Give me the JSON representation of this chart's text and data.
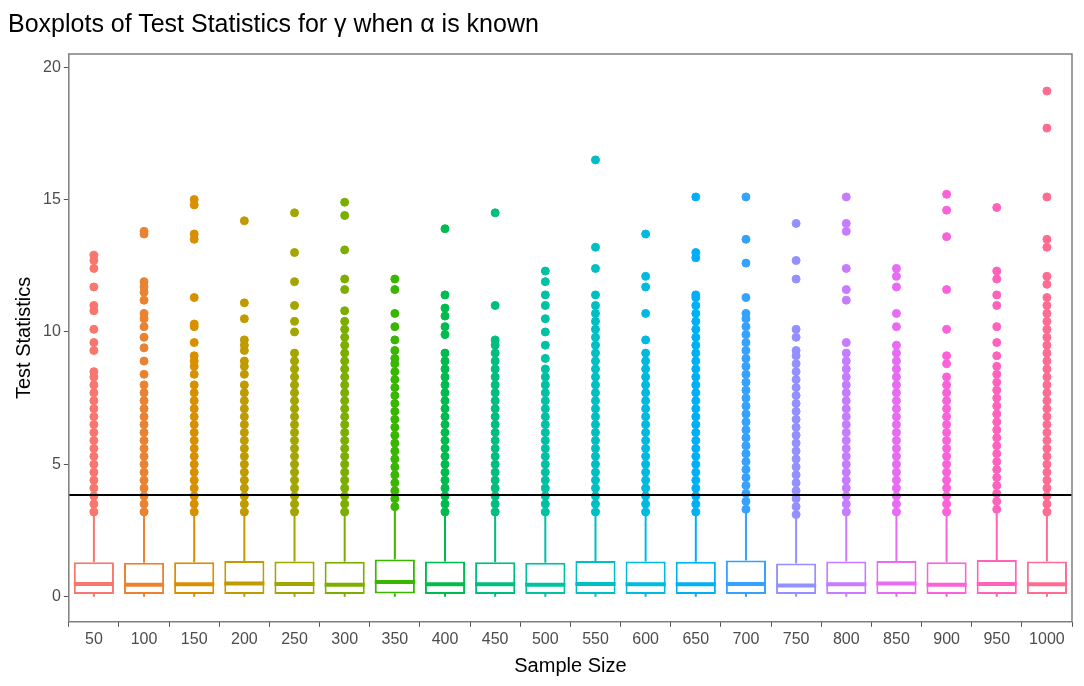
{
  "chart_data": {
    "type": "box",
    "title": "Boxplots of Test Statistics for γ when α is known",
    "xlabel": "Sample Size",
    "ylabel": "Test Statistics",
    "categories": [
      "50",
      "100",
      "150",
      "200",
      "250",
      "300",
      "350",
      "400",
      "450",
      "500",
      "550",
      "600",
      "650",
      "700",
      "750",
      "800",
      "850",
      "900",
      "950",
      "1000"
    ],
    "colors": [
      "#f8766d",
      "#ea8331",
      "#d89000",
      "#c09b00",
      "#a3a500",
      "#7cae00",
      "#39b600",
      "#00bb4e",
      "#00bf7d",
      "#00c1a3",
      "#00bfc4",
      "#00bae0",
      "#00b0f6",
      "#35a2ff",
      "#9590ff",
      "#c77cff",
      "#e76bf3",
      "#fa62db",
      "#ff62bc",
      "#ff6c91"
    ],
    "ylim": [
      -0.95,
      20.5
    ],
    "yticks": [
      0,
      5,
      10,
      15,
      20
    ],
    "grid": false,
    "legend": false,
    "ref_lines": [
      {
        "axis": "y",
        "value": 3.84,
        "color": "#000000"
      }
    ],
    "boxes": [
      {
        "low": 0,
        "q1": 0.1,
        "median": 0.48,
        "q3": 1.3,
        "high": 3.1,
        "outliers": [
          3.2,
          3.5,
          3.8,
          4.1,
          4.4,
          4.7,
          5.0,
          5.3,
          5.6,
          5.9,
          6.2,
          6.5,
          6.8,
          7.1,
          7.4,
          7.7,
          8.0,
          8.3,
          8.5,
          9.3,
          9.6,
          10.1,
          10.8,
          11.0,
          11.7,
          12.4,
          12.7,
          12.9
        ]
      },
      {
        "low": 0,
        "q1": 0.1,
        "median": 0.45,
        "q3": 1.28,
        "high": 3.05,
        "outliers": [
          3.2,
          3.5,
          3.8,
          4.1,
          4.4,
          4.7,
          5.0,
          5.3,
          5.6,
          5.9,
          6.2,
          6.5,
          6.8,
          7.1,
          7.4,
          7.7,
          8.0,
          8.4,
          8.9,
          9.4,
          9.8,
          10.2,
          10.5,
          10.7,
          11.2,
          11.5,
          11.7,
          11.9,
          13.7,
          13.8
        ]
      },
      {
        "low": 0,
        "q1": 0.1,
        "median": 0.47,
        "q3": 1.3,
        "high": 3.1,
        "outliers": [
          3.2,
          3.5,
          3.8,
          4.1,
          4.4,
          4.7,
          5.0,
          5.3,
          5.6,
          5.9,
          6.2,
          6.5,
          6.8,
          7.1,
          7.4,
          7.7,
          8.0,
          8.4,
          8.7,
          8.9,
          9.1,
          9.6,
          10.2,
          10.3,
          11.3,
          13.5,
          13.7,
          14.8,
          15.0
        ]
      },
      {
        "low": 0,
        "q1": 0.1,
        "median": 0.5,
        "q3": 1.35,
        "high": 3.15,
        "outliers": [
          3.2,
          3.5,
          3.8,
          4.1,
          4.4,
          4.7,
          5.0,
          5.3,
          5.6,
          5.9,
          6.2,
          6.5,
          6.8,
          7.1,
          7.4,
          7.7,
          8.0,
          8.4,
          8.7,
          8.9,
          9.3,
          9.5,
          9.7,
          10.5,
          11.1,
          14.2
        ]
      },
      {
        "low": 0,
        "q1": 0.1,
        "median": 0.48,
        "q3": 1.33,
        "high": 3.1,
        "outliers": [
          3.2,
          3.5,
          3.8,
          4.1,
          4.4,
          4.7,
          5.0,
          5.3,
          5.6,
          5.9,
          6.2,
          6.5,
          6.8,
          7.1,
          7.4,
          7.7,
          8.0,
          8.3,
          8.6,
          8.9,
          9.2,
          10.0,
          10.4,
          11.0,
          11.9,
          13.0,
          14.5
        ]
      },
      {
        "low": 0,
        "q1": 0.1,
        "median": 0.45,
        "q3": 1.32,
        "high": 3.1,
        "outliers": [
          3.2,
          3.5,
          3.8,
          4.1,
          4.4,
          4.7,
          5.0,
          5.3,
          5.6,
          5.9,
          6.2,
          6.5,
          6.8,
          7.1,
          7.4,
          7.7,
          8.0,
          8.3,
          8.6,
          8.9,
          9.2,
          9.5,
          9.8,
          10.1,
          10.4,
          10.8,
          11.6,
          12.0,
          13.1,
          14.4,
          14.9
        ]
      },
      {
        "low": 0,
        "q1": 0.12,
        "median": 0.55,
        "q3": 1.4,
        "high": 3.3,
        "outliers": [
          3.4,
          3.7,
          4.0,
          4.3,
          4.6,
          4.9,
          5.2,
          5.5,
          5.8,
          6.1,
          6.4,
          6.7,
          7.0,
          7.3,
          7.6,
          7.9,
          8.2,
          8.5,
          8.8,
          9.0,
          9.3,
          9.7,
          10.2,
          10.7,
          11.6,
          12.0
        ]
      },
      {
        "low": 0,
        "q1": 0.1,
        "median": 0.47,
        "q3": 1.33,
        "high": 3.1,
        "outliers": [
          3.2,
          3.5,
          3.8,
          4.1,
          4.4,
          4.7,
          5.0,
          5.3,
          5.6,
          5.9,
          6.2,
          6.5,
          6.8,
          7.1,
          7.4,
          7.7,
          8.0,
          8.3,
          8.6,
          8.9,
          9.2,
          9.9,
          10.2,
          10.6,
          10.9,
          11.4,
          13.9
        ]
      },
      {
        "low": 0,
        "q1": 0.1,
        "median": 0.47,
        "q3": 1.3,
        "high": 3.1,
        "outliers": [
          3.2,
          3.5,
          3.8,
          4.1,
          4.4,
          4.7,
          5.0,
          5.3,
          5.6,
          5.9,
          6.2,
          6.5,
          6.8,
          7.1,
          7.4,
          7.7,
          8.0,
          8.3,
          8.6,
          8.9,
          9.2,
          9.5,
          9.7,
          11.0,
          14.5
        ]
      },
      {
        "low": 0,
        "q1": 0.1,
        "median": 0.45,
        "q3": 1.28,
        "high": 3.05,
        "outliers": [
          3.2,
          3.5,
          3.8,
          4.1,
          4.4,
          4.7,
          5.0,
          5.3,
          5.6,
          5.9,
          6.2,
          6.5,
          6.8,
          7.1,
          7.4,
          7.7,
          8.0,
          8.3,
          8.6,
          9.0,
          9.5,
          10.0,
          10.5,
          11.0,
          11.4,
          11.9,
          12.3
        ]
      },
      {
        "low": 0,
        "q1": 0.1,
        "median": 0.48,
        "q3": 1.35,
        "high": 3.15,
        "outliers": [
          3.2,
          3.5,
          3.8,
          4.1,
          4.4,
          4.7,
          5.0,
          5.3,
          5.6,
          5.9,
          6.2,
          6.5,
          6.8,
          7.1,
          7.4,
          7.7,
          8.0,
          8.3,
          8.6,
          8.9,
          9.2,
          9.5,
          9.8,
          10.1,
          10.4,
          10.7,
          11.0,
          11.4,
          12.4,
          13.2,
          16.5
        ]
      },
      {
        "low": 0,
        "q1": 0.1,
        "median": 0.47,
        "q3": 1.33,
        "high": 3.1,
        "outliers": [
          3.2,
          3.5,
          3.8,
          4.1,
          4.4,
          4.7,
          5.0,
          5.3,
          5.6,
          5.9,
          6.2,
          6.5,
          6.8,
          7.1,
          7.4,
          7.7,
          8.0,
          8.3,
          8.6,
          8.9,
          9.2,
          9.7,
          10.7,
          11.7,
          12.1,
          13.7
        ]
      },
      {
        "low": 0,
        "q1": 0.1,
        "median": 0.47,
        "q3": 1.32,
        "high": 3.1,
        "outliers": [
          3.2,
          3.5,
          3.8,
          4.1,
          4.4,
          4.7,
          5.0,
          5.3,
          5.6,
          5.9,
          6.2,
          6.5,
          6.8,
          7.1,
          7.4,
          7.7,
          8.0,
          8.3,
          8.6,
          8.9,
          9.2,
          9.5,
          9.8,
          10.1,
          10.4,
          10.7,
          11.0,
          11.3,
          11.4,
          12.8,
          13.0,
          15.1
        ]
      },
      {
        "low": 0,
        "q1": 0.1,
        "median": 0.48,
        "q3": 1.37,
        "high": 3.2,
        "outliers": [
          3.3,
          3.6,
          3.9,
          4.2,
          4.5,
          4.8,
          5.1,
          5.4,
          5.7,
          6.0,
          6.3,
          6.6,
          6.9,
          7.2,
          7.5,
          7.8,
          8.1,
          8.4,
          8.7,
          9.0,
          9.3,
          9.6,
          9.9,
          10.2,
          10.5,
          10.7,
          11.3,
          12.6,
          13.5,
          15.1
        ]
      },
      {
        "low": 0,
        "q1": 0.1,
        "median": 0.42,
        "q3": 1.25,
        "high": 3.0,
        "outliers": [
          3.1,
          3.4,
          3.7,
          4.0,
          4.3,
          4.6,
          4.9,
          5.2,
          5.5,
          5.8,
          6.1,
          6.4,
          6.7,
          7.0,
          7.3,
          7.6,
          7.9,
          8.2,
          8.5,
          8.8,
          9.1,
          9.3,
          9.8,
          10.1,
          12.0,
          12.7,
          14.1
        ]
      },
      {
        "low": 0,
        "q1": 0.1,
        "median": 0.47,
        "q3": 1.33,
        "high": 3.1,
        "outliers": [
          3.2,
          3.5,
          3.8,
          4.1,
          4.4,
          4.7,
          5.0,
          5.3,
          5.6,
          5.9,
          6.2,
          6.5,
          6.8,
          7.1,
          7.4,
          7.7,
          8.0,
          8.3,
          8.6,
          8.9,
          9.2,
          9.6,
          11.2,
          11.6,
          12.4,
          13.8,
          14.1,
          15.1
        ]
      },
      {
        "low": 0,
        "q1": 0.1,
        "median": 0.5,
        "q3": 1.35,
        "high": 3.15,
        "outliers": [
          3.2,
          3.5,
          3.8,
          4.1,
          4.4,
          4.7,
          5.0,
          5.3,
          5.6,
          5.9,
          6.2,
          6.5,
          6.8,
          7.1,
          7.4,
          7.7,
          8.0,
          8.3,
          8.6,
          8.9,
          9.2,
          9.5,
          10.2,
          10.7,
          11.7,
          12.1,
          12.4
        ]
      },
      {
        "low": 0,
        "q1": 0.1,
        "median": 0.45,
        "q3": 1.3,
        "high": 3.1,
        "outliers": [
          3.2,
          3.5,
          3.8,
          4.1,
          4.4,
          4.7,
          5.0,
          5.3,
          5.6,
          5.9,
          6.2,
          6.5,
          6.8,
          7.1,
          7.4,
          7.7,
          8.0,
          8.3,
          8.8,
          9.1,
          10.1,
          11.6,
          13.6,
          14.6,
          15.2
        ]
      },
      {
        "low": 0,
        "q1": 0.1,
        "median": 0.48,
        "q3": 1.38,
        "high": 3.2,
        "outliers": [
          3.3,
          3.6,
          3.9,
          4.2,
          4.5,
          4.8,
          5.1,
          5.4,
          5.7,
          6.0,
          6.3,
          6.6,
          6.9,
          7.2,
          7.5,
          7.8,
          8.1,
          8.4,
          8.7,
          9.1,
          9.6,
          10.2,
          11.0,
          11.4,
          12.0,
          12.3,
          14.7
        ]
      },
      {
        "low": 0,
        "q1": 0.1,
        "median": 0.47,
        "q3": 1.33,
        "high": 3.1,
        "outliers": [
          3.2,
          3.5,
          3.8,
          4.1,
          4.4,
          4.7,
          5.0,
          5.3,
          5.6,
          5.9,
          6.2,
          6.5,
          6.8,
          7.1,
          7.4,
          7.7,
          8.0,
          8.3,
          8.6,
          8.9,
          9.2,
          9.5,
          9.8,
          10.1,
          10.4,
          10.7,
          11.0,
          11.3,
          11.8,
          12.1,
          13.2,
          13.5,
          15.1,
          17.7,
          19.1
        ]
      }
    ]
  }
}
